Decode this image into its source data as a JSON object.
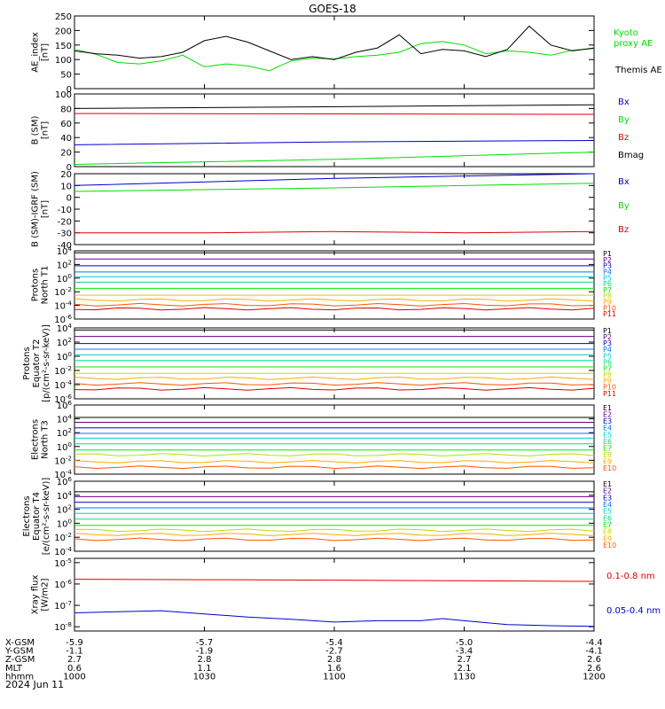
{
  "title": "GOES-18",
  "date_label": "2024 Jun 11",
  "footer": {
    "rows": [
      {
        "label": "X-GSM",
        "values": [
          "-5.9",
          "-5.7",
          "-5.4",
          "-5.0",
          "-4.4"
        ]
      },
      {
        "label": "Y-GSM",
        "values": [
          "-1.1",
          "-1.9",
          "-2.7",
          "-3.4",
          "-4.1"
        ]
      },
      {
        "label": "Z-GSM",
        "values": [
          "2.7",
          "2.8",
          "2.8",
          "2.7",
          "2.6"
        ]
      },
      {
        "label": "MLT",
        "values": [
          "0.6",
          "1.1",
          "1.6",
          "2.1",
          "2.6"
        ]
      },
      {
        "label": "hhmm",
        "values": [
          "1000",
          "1030",
          "1100",
          "1130",
          "1200"
        ]
      }
    ]
  },
  "colors": {
    "black": "#000000",
    "red": "#dd0000",
    "green": "#00dd00",
    "blue": "#0000cc",
    "levels": [
      "#000000",
      "#660088",
      "#0000cc",
      "#0077ff",
      "#00cccc",
      "#00dd88",
      "#00ee00",
      "#bbdd00",
      "#ffaa00",
      "#ff5500",
      "#dd0000",
      "#aa0000"
    ]
  },
  "chart_data": [
    {
      "type": "line",
      "panel": "ae",
      "ylabel": [
        "AE_index",
        "[nT]"
      ],
      "ylim": [
        0,
        250
      ],
      "ytick_labels": [
        "0",
        "50",
        "100",
        "150",
        "200",
        "250"
      ],
      "xlim": [
        0,
        120
      ],
      "legend": [
        "Kyoto proxy AE",
        "Themis AE"
      ],
      "series": [
        {
          "name": "Kyoto proxy AE",
          "color": "green",
          "x": [
            0,
            5,
            10,
            15,
            20,
            25,
            30,
            35,
            40,
            45,
            50,
            55,
            60,
            65,
            70,
            75,
            80,
            85,
            90,
            95,
            100,
            105,
            110,
            115,
            120
          ],
          "y": [
            135,
            118,
            90,
            85,
            95,
            115,
            75,
            85,
            78,
            62,
            95,
            105,
            102,
            110,
            115,
            125,
            155,
            162,
            150,
            120,
            130,
            125,
            115,
            132,
            138
          ]
        },
        {
          "name": "Themis AE",
          "color": "black",
          "x": [
            0,
            5,
            10,
            15,
            20,
            25,
            30,
            35,
            40,
            45,
            50,
            55,
            60,
            65,
            70,
            75,
            80,
            85,
            90,
            95,
            100,
            105,
            110,
            115,
            120
          ],
          "y": [
            130,
            120,
            115,
            105,
            110,
            125,
            165,
            180,
            160,
            130,
            100,
            110,
            100,
            125,
            140,
            185,
            120,
            135,
            130,
            110,
            135,
            215,
            150,
            130,
            140
          ]
        }
      ]
    },
    {
      "type": "line",
      "panel": "bsm",
      "ylabel": [
        "B (SM)",
        "[nT]"
      ],
      "ylim": [
        0,
        100
      ],
      "ytick_labels": [
        "0",
        "20",
        "40",
        "60",
        "80",
        "100"
      ],
      "xlim": [
        0,
        120
      ],
      "legend": [
        "Bx",
        "By",
        "Bz",
        "Bmag"
      ],
      "series": [
        {
          "name": "Bmag",
          "color": "black",
          "x": [
            0,
            120
          ],
          "y": [
            80,
            85
          ]
        },
        {
          "name": "Bz",
          "color": "red",
          "x": [
            0,
            120
          ],
          "y": [
            73,
            72
          ]
        },
        {
          "name": "Bx",
          "color": "blue",
          "x": [
            0,
            60,
            120
          ],
          "y": [
            30,
            34,
            36
          ]
        },
        {
          "name": "By",
          "color": "green",
          "x": [
            0,
            60,
            120
          ],
          "y": [
            3,
            10,
            20
          ]
        }
      ]
    },
    {
      "type": "line",
      "panel": "bigrf",
      "ylabel": [
        "B (SM)-IGRF (SM)",
        "[nT]"
      ],
      "ylim": [
        -40,
        20
      ],
      "ytick_labels": [
        "-40",
        "-30",
        "-20",
        "-10",
        "0",
        "10",
        "20"
      ],
      "xlim": [
        0,
        120
      ],
      "legend": [
        "Bx",
        "By",
        "Bz"
      ],
      "series": [
        {
          "name": "Bx",
          "color": "blue",
          "x": [
            0,
            60,
            120
          ],
          "y": [
            10,
            16,
            20
          ]
        },
        {
          "name": "By",
          "color": "green",
          "x": [
            0,
            60,
            120
          ],
          "y": [
            5,
            8,
            12
          ]
        },
        {
          "name": "Bz",
          "color": "red",
          "x": [
            0,
            30,
            60,
            90,
            120
          ],
          "y": [
            -30,
            -30,
            -29,
            -30,
            -29
          ]
        }
      ]
    },
    {
      "type": "line",
      "panel": "protons_t1",
      "ylabel": [
        "Protons",
        "North T1"
      ],
      "log": true,
      "ylim_exp": [
        -6,
        4
      ],
      "ytick_labels": [
        "10^-6",
        "10^-4",
        "10^-2",
        "10^0",
        "10^2",
        "10^4"
      ],
      "xlim": [
        0,
        120
      ],
      "legend": [
        "P1",
        "P2",
        "P3",
        "P4",
        "P5",
        "P6",
        "P7",
        "P8",
        "P9",
        "P10",
        "P11"
      ],
      "levels_exp": [
        3.7,
        2.8,
        1.8,
        0.9,
        0.2,
        -0.6,
        -1.5,
        -2.5,
        -3.2,
        -3.9,
        -4.5
      ]
    },
    {
      "type": "line",
      "panel": "protons_t2",
      "ylabel": [
        "Protons",
        "Equator T2",
        "[p/(cm²-s-sr-keV)]"
      ],
      "log": true,
      "ylim_exp": [
        -6,
        4
      ],
      "ytick_labels": [
        "10^-6",
        "10^-4",
        "10^-2",
        "10^0",
        "10^2",
        "10^4"
      ],
      "xlim": [
        0,
        120
      ],
      "legend": [
        "P1",
        "P2",
        "P3",
        "P4",
        "P5",
        "P6",
        "P7",
        "P8",
        "P9",
        "P10",
        "P11"
      ],
      "levels_exp": [
        3.7,
        2.8,
        1.8,
        1.0,
        0.2,
        -0.6,
        -1.5,
        -2.4,
        -3.1,
        -3.9,
        -4.6
      ]
    },
    {
      "type": "line",
      "panel": "electrons_t3",
      "ylabel": [
        "Electrons",
        "North T3"
      ],
      "log": true,
      "ylim_exp": [
        -4,
        6
      ],
      "ytick_labels": [
        "10^-4",
        "10^-2",
        "10^0",
        "10^2",
        "10^4",
        "10^6"
      ],
      "xlim": [
        0,
        120
      ],
      "legend": [
        "E1",
        "E2",
        "E3",
        "E4",
        "E5",
        "E6",
        "E7",
        "E8",
        "E9",
        "E10"
      ],
      "levels_exp": [
        4.2,
        3.5,
        2.7,
        1.9,
        1.2,
        0.4,
        -0.5,
        -1.2,
        -2.2,
        -3.0
      ]
    },
    {
      "type": "line",
      "panel": "electrons_t4",
      "ylabel": [
        "Electrons",
        "Equator T4",
        "[e/(cm²-s-sr-keV)]"
      ],
      "log": true,
      "ylim_exp": [
        -4,
        6
      ],
      "ytick_labels": [
        "10^-4",
        "10^-2",
        "10^0",
        "10^2",
        "10^4",
        "10^6"
      ],
      "xlim": [
        0,
        120
      ],
      "legend": [
        "E1",
        "E2",
        "E3",
        "E4",
        "E5",
        "E6",
        "E7",
        "E8",
        "E9",
        "E10"
      ],
      "levels_exp": [
        4.5,
        3.8,
        3.0,
        2.2,
        1.4,
        0.6,
        -0.3,
        -1.0,
        -1.6,
        -2.3
      ]
    },
    {
      "type": "line",
      "panel": "xray",
      "ylabel": [
        "Xray flux",
        "[W/m2]"
      ],
      "log": true,
      "ylim_exp": [
        -8.2,
        -4.8
      ],
      "ytick_labels": [
        "10^-8",
        "10^-7",
        "10^-6",
        "10^-5"
      ],
      "xlim": [
        0,
        120
      ],
      "legend": [
        "0.1-0.8 nm",
        "0.05-0.4 nm"
      ],
      "series": [
        {
          "name": "0.1-0.8 nm",
          "color": "red",
          "x": [
            0,
            30,
            60,
            90,
            120
          ],
          "y_exp": [
            -5.78,
            -5.8,
            -5.82,
            -5.85,
            -5.88
          ]
        },
        {
          "name": "0.05-0.4 nm",
          "color": "blue",
          "x": [
            0,
            10,
            20,
            30,
            40,
            50,
            60,
            70,
            80,
            85,
            90,
            100,
            110,
            120
          ],
          "y_exp": [
            -7.35,
            -7.3,
            -7.25,
            -7.4,
            -7.55,
            -7.65,
            -7.78,
            -7.72,
            -7.72,
            -7.62,
            -7.72,
            -7.9,
            -7.95,
            -7.98
          ]
        }
      ]
    }
  ]
}
